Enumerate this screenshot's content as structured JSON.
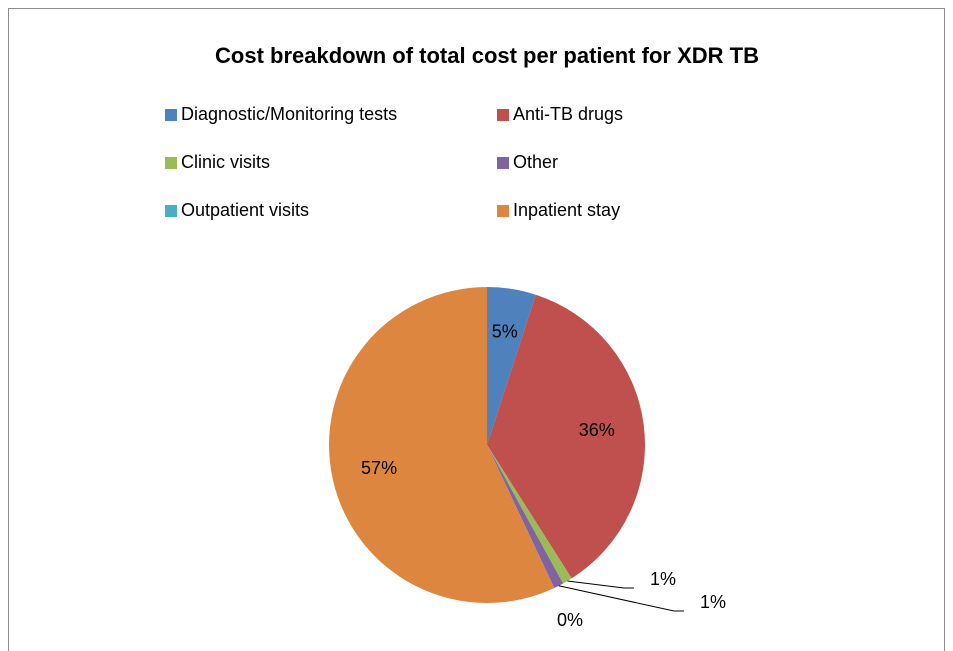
{
  "chart_data": {
    "type": "pie",
    "title": "Cost breakdown of total cost per patient for XDR TB",
    "categories": [
      "Diagnostic/Monitoring tests",
      "Anti-TB drugs",
      "Clinic visits",
      "Other",
      "Outpatient visits",
      "Inpatient stay"
    ],
    "values": [
      5,
      36,
      1,
      1,
      0,
      57
    ],
    "value_labels": [
      "5%",
      "36%",
      "1%",
      "1%",
      "0%",
      "57%"
    ],
    "colors": [
      "#4f81bd",
      "#c0504d",
      "#9bbb59",
      "#8064a2",
      "#4bacc6",
      "#dd8640"
    ],
    "legend": "top"
  }
}
